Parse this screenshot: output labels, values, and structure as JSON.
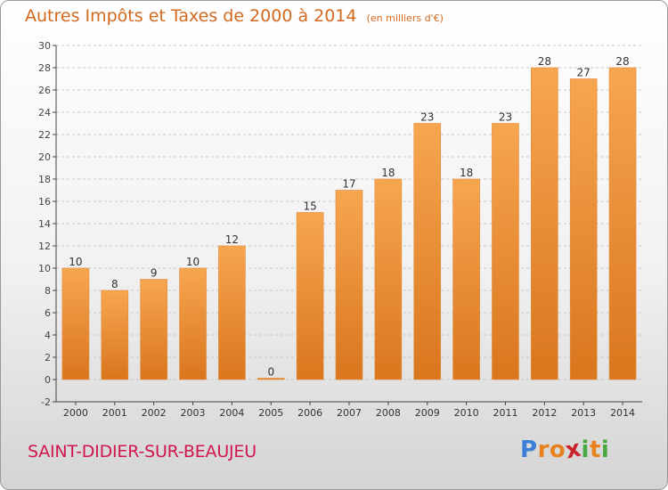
{
  "title": "Autres Impôts et Taxes de 2000 à 2014",
  "unit": "(en milliers d'€)",
  "commune": "SAINT-DIDIER-SUR-BEAUJEU",
  "logo": {
    "letters": [
      "P",
      "r",
      "o",
      "x",
      "i",
      "t",
      "i"
    ],
    "colors": [
      "#3a7fd5",
      "#e8821e",
      "#e8821e",
      "#c9242b",
      "#48a843",
      "#e8821e",
      "#48a843"
    ]
  },
  "colors": {
    "bar_light": "#f7a650",
    "bar_dark": "#d9761e",
    "title": "#d2691e",
    "commune": "#d0174d",
    "axis": "#444444"
  },
  "chart_data": {
    "type": "bar",
    "categories": [
      "2000",
      "2001",
      "2002",
      "2003",
      "2004",
      "2005",
      "2006",
      "2007",
      "2008",
      "2009",
      "2010",
      "2011",
      "2012",
      "2013",
      "2014"
    ],
    "values": [
      10,
      8,
      9,
      10,
      12,
      0,
      15,
      17,
      18,
      23,
      18,
      23,
      28,
      27,
      28
    ],
    "ylim": [
      -2,
      30
    ],
    "yticks": [
      -2,
      0,
      2,
      4,
      6,
      8,
      10,
      12,
      14,
      16,
      18,
      20,
      22,
      24,
      26,
      28,
      30
    ],
    "grid": true,
    "title": "Autres Impôts et Taxes de 2000 à 2014",
    "xlabel": "",
    "ylabel": ""
  }
}
